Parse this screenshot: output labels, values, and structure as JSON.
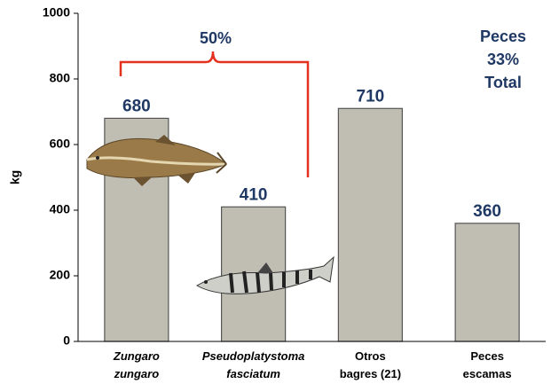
{
  "chart_data": {
    "type": "bar",
    "categories": [
      "Zungaro zungaro",
      "Pseudoplatystoma fasciatum",
      "Otros bagres (21)",
      "Peces escamas"
    ],
    "italic_categories": [
      true,
      true,
      false,
      false
    ],
    "values": [
      680,
      410,
      710,
      360
    ],
    "color": "#c0bdb2",
    "ylabel": "kg",
    "ylim": [
      0,
      1000
    ],
    "yticks": [
      0,
      200,
      400,
      600,
      800,
      1000
    ],
    "bracket_label": "50%",
    "annotation_lines": [
      "Peces",
      "33%",
      "Total"
    ]
  }
}
